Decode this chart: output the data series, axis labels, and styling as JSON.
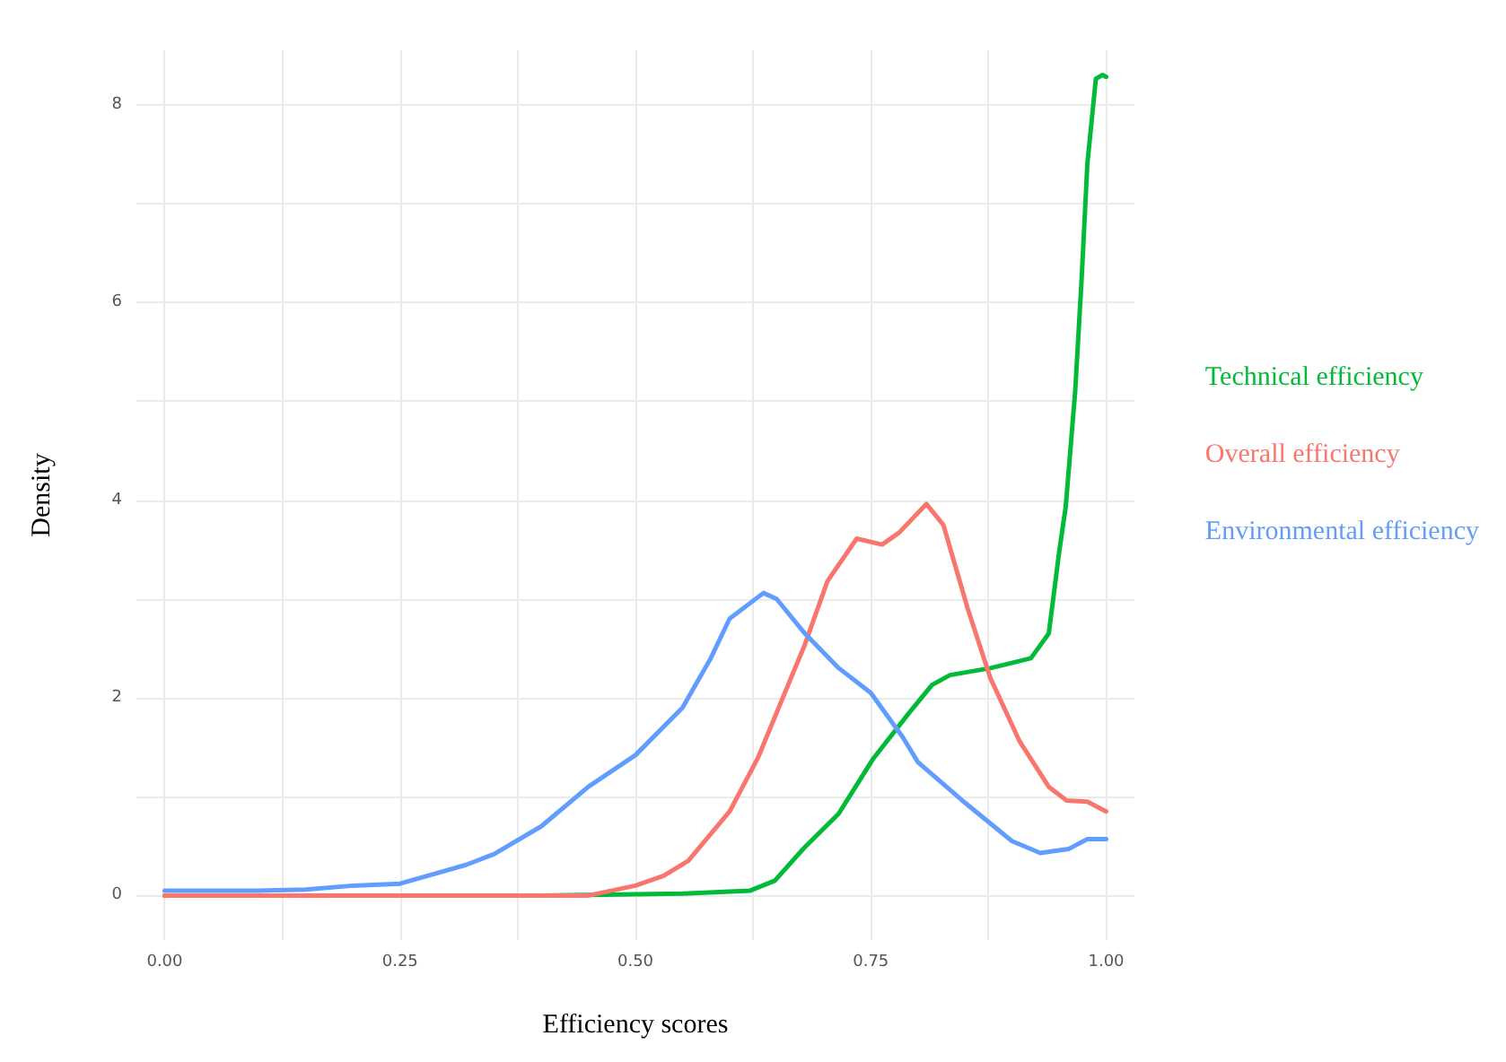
{
  "chart_data": {
    "type": "line",
    "xlabel": "Efficiency scores",
    "ylabel": "Density",
    "xlim": [
      -0.03,
      1.03
    ],
    "ylim": [
      -0.45,
      8.55
    ],
    "xticks": [
      {
        "value": 0,
        "label": "0.00"
      },
      {
        "value": 0.125,
        "label": null
      },
      {
        "value": 0.25,
        "label": "0.25"
      },
      {
        "value": 0.375,
        "label": null
      },
      {
        "value": 0.5,
        "label": "0.50"
      },
      {
        "value": 0.625,
        "label": null
      },
      {
        "value": 0.75,
        "label": "0.75"
      },
      {
        "value": 0.875,
        "label": null
      },
      {
        "value": 1,
        "label": "1.00"
      }
    ],
    "yticks": [
      0,
      {
        "value": 1,
        "label": null
      },
      2,
      {
        "value": 3,
        "label": null
      },
      4,
      {
        "value": 5,
        "label": null
      },
      6,
      {
        "value": 7,
        "label": null
      },
      8
    ],
    "grid": true,
    "legend": "right",
    "marker": "none",
    "line_style": "solid",
    "series": [
      {
        "name": "Technical efficiency",
        "color": "#00ba38",
        "x": [
          0,
          0.2,
          0.4,
          0.55,
          0.6,
          0.622,
          0.648,
          0.679,
          0.716,
          0.753,
          0.79,
          0.815,
          0.834,
          0.877,
          0.92,
          0.939,
          0.95,
          0.957,
          0.967,
          0.974,
          0.98,
          0.989,
          0.996,
          1.0
        ],
        "values": [
          0,
          0,
          0,
          0.02,
          0.04,
          0.05,
          0.15,
          0.48,
          0.83,
          1.39,
          1.84,
          2.13,
          2.23,
          2.3,
          2.4,
          2.65,
          3.47,
          3.93,
          5.09,
          6.25,
          7.4,
          8.26,
          8.3,
          8.28
        ]
      },
      {
        "name": "Overall efficiency",
        "color": "#f8766d",
        "x": [
          0,
          0.2,
          0.45,
          0.5,
          0.53,
          0.556,
          0.6,
          0.63,
          0.68,
          0.704,
          0.735,
          0.762,
          0.78,
          0.809,
          0.827,
          0.853,
          0.877,
          0.908,
          0.939,
          0.958,
          0.98,
          1.0
        ],
        "values": [
          0,
          0,
          0,
          0.1,
          0.2,
          0.35,
          0.85,
          1.39,
          2.54,
          3.18,
          3.61,
          3.55,
          3.67,
          3.96,
          3.75,
          2.9,
          2.2,
          1.56,
          1.1,
          0.96,
          0.95,
          0.85
        ]
      },
      {
        "name": "Environmental efficiency",
        "color": "#619cff",
        "x": [
          0,
          0.1,
          0.15,
          0.2,
          0.25,
          0.32,
          0.35,
          0.4,
          0.45,
          0.5,
          0.55,
          0.58,
          0.6,
          0.636,
          0.65,
          0.68,
          0.716,
          0.75,
          0.784,
          0.8,
          0.846,
          0.9,
          0.93,
          0.96,
          0.98,
          1.0
        ],
        "values": [
          0.05,
          0.05,
          0.06,
          0.1,
          0.12,
          0.31,
          0.42,
          0.7,
          1.1,
          1.42,
          1.9,
          2.4,
          2.8,
          3.06,
          3.0,
          2.65,
          2.3,
          2.05,
          1.6,
          1.35,
          0.97,
          0.55,
          0.43,
          0.47,
          0.57,
          0.57
        ]
      }
    ]
  }
}
